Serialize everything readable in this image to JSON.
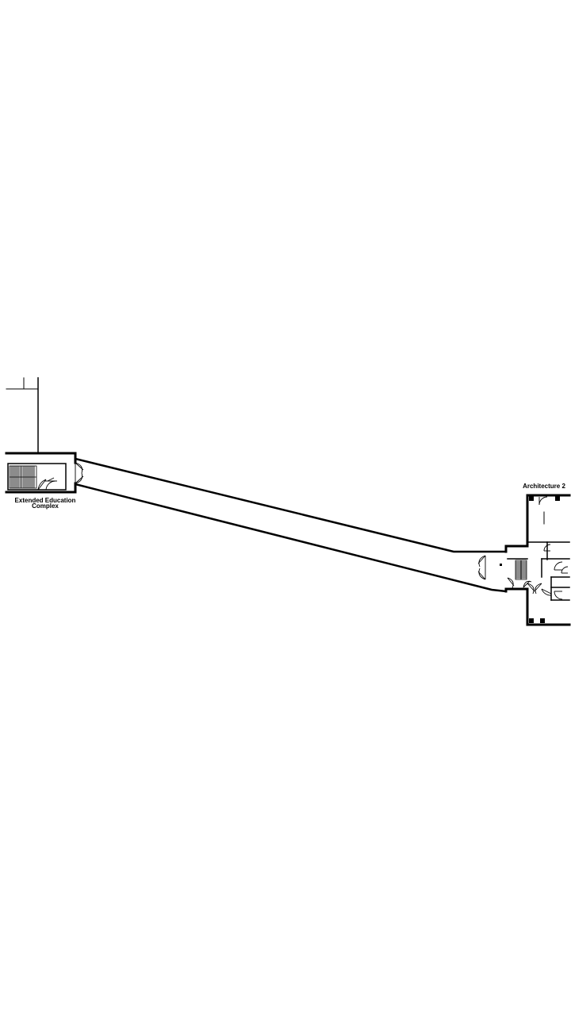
{
  "map": {
    "labels": {
      "left_building_line1": "Extended Education",
      "left_building_line2": "Complex",
      "right_building": "Architecture 2"
    }
  }
}
